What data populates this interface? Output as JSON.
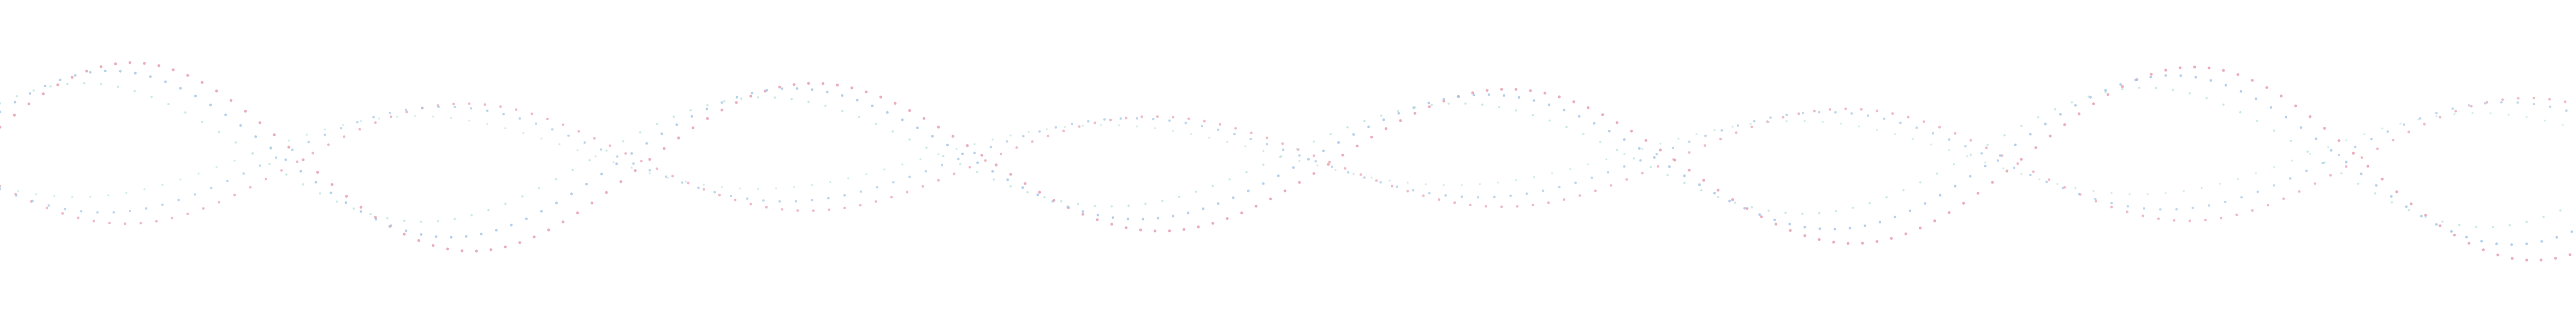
{
  "background_color": "#ffffff",
  "strands": [
    {
      "name": "dotted-wave-strand-pink",
      "color": "#e8a6b6"
    },
    {
      "name": "dotted-wave-strand-blue",
      "color": "#a3c4e6"
    },
    {
      "name": "dotted-wave-strand-teal",
      "color": "#a9ddd2"
    }
  ]
}
